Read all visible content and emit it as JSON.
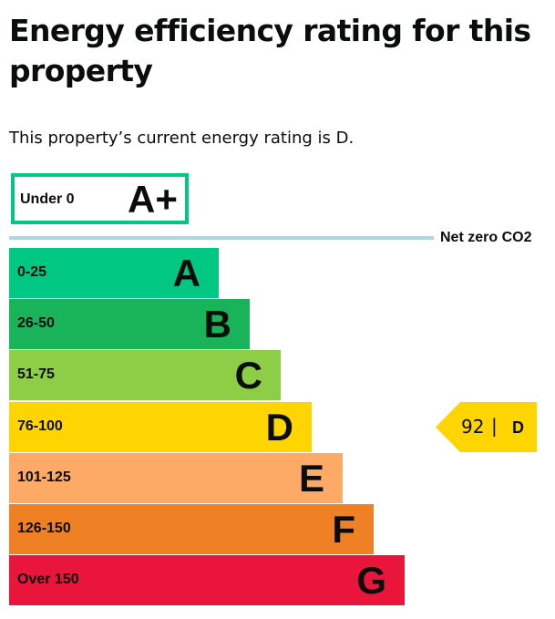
{
  "title": "Energy efficiency rating for this property",
  "summary": "This property’s current energy rating is D.",
  "top_band": {
    "range": "Under 0",
    "letter": "A+",
    "color": "#00c781"
  },
  "net_zero": {
    "label": "Net zero CO2",
    "color": "#a9d9e4"
  },
  "bands": [
    {
      "range": "0-25",
      "letter": "A",
      "color": "#00c781"
    },
    {
      "range": "26-50",
      "letter": "B",
      "color": "#19b459"
    },
    {
      "range": "51-75",
      "letter": "C",
      "color": "#8dce46"
    },
    {
      "range": "76-100",
      "letter": "D",
      "color": "#ffd500"
    },
    {
      "range": "101-125",
      "letter": "E",
      "color": "#fcaa65"
    },
    {
      "range": "126-150",
      "letter": "F",
      "color": "#ef8023"
    },
    {
      "range": "Over 150",
      "letter": "G",
      "color": "#e9153b"
    }
  ],
  "current": {
    "score": "92",
    "separator": "|",
    "letter": "D",
    "color": "#ffd500"
  }
}
